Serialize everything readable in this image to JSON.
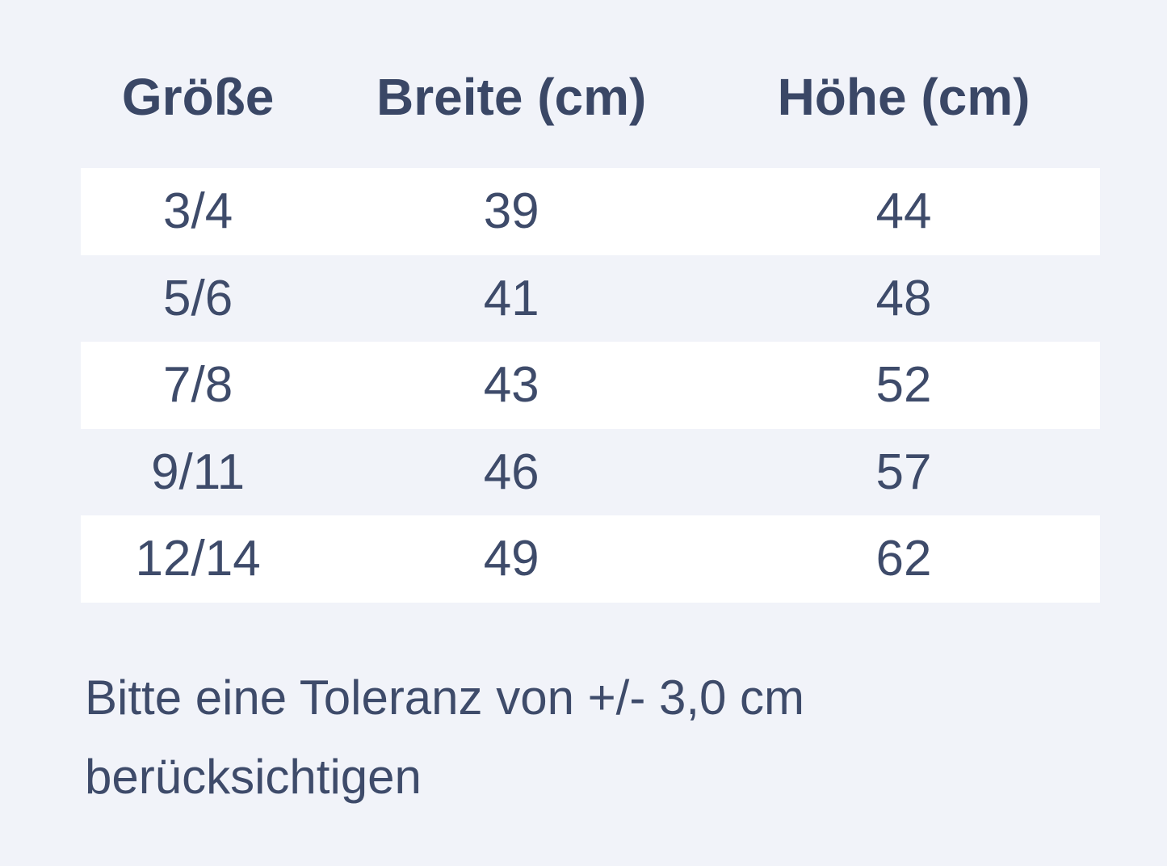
{
  "page": {
    "background_color": "#F1F3F9",
    "stripe_color": "#FFFFFF",
    "text_color": "#3E4B6A",
    "header_text_color": "#3A4766"
  },
  "chart_data": {
    "type": "table",
    "columns": [
      "Größe",
      "Breite (cm)",
      "Höhe (cm)"
    ],
    "rows": [
      [
        "3/4",
        39,
        44
      ],
      [
        "5/6",
        41,
        48
      ],
      [
        "7/8",
        43,
        52
      ],
      [
        "9/11",
        46,
        57
      ],
      [
        "12/14",
        49,
        62
      ]
    ],
    "note": "Bitte eine Toleranz von +/- 3,0 cm berücksichtigen",
    "layout": {
      "striped_rows": "odd",
      "column_alignment": "center"
    }
  }
}
